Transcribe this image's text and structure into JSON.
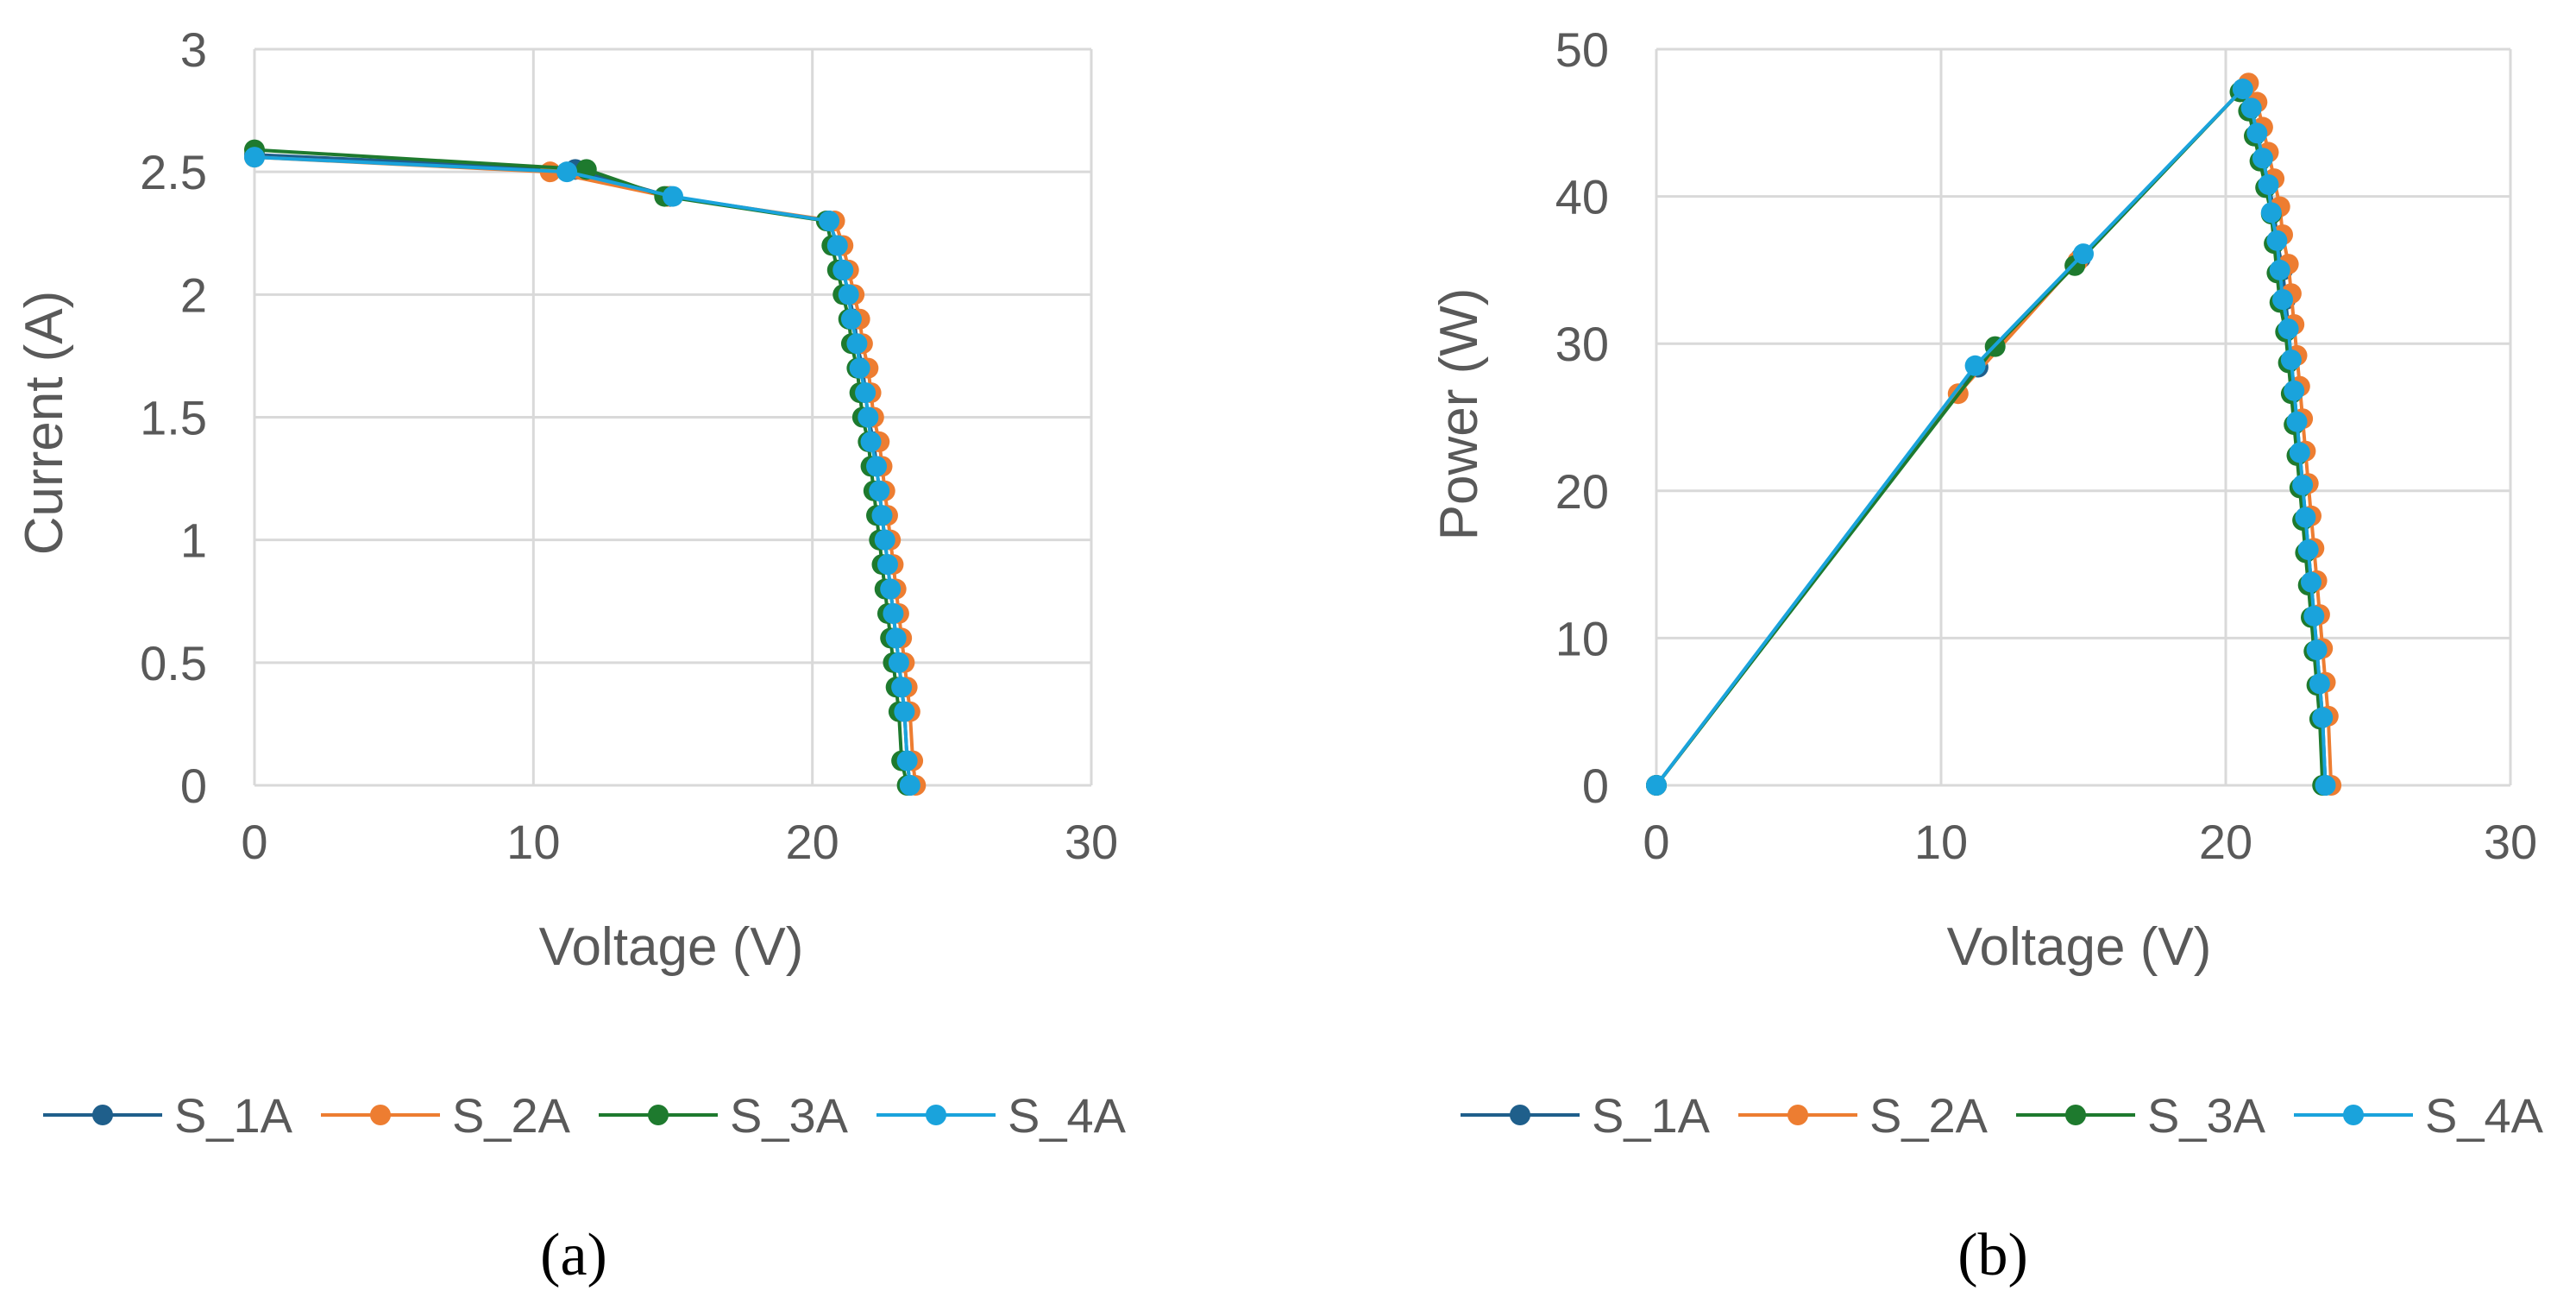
{
  "chart_data": [
    {
      "type": "line",
      "panel_label": "(a)",
      "xlabel": "Voltage (V)",
      "ylabel": "Current (A)",
      "xlim": [
        0,
        30
      ],
      "ylim": [
        0,
        3
      ],
      "xticks": [
        "0",
        "10",
        "20",
        "30"
      ],
      "yticks": [
        "0",
        "0.5",
        "1",
        "1.5",
        "2",
        "2.5",
        "3"
      ],
      "legend_position": "bottom",
      "series": [
        {
          "name": "S_1A",
          "color": "#1f5f8b",
          "x": [
            0,
            11.5,
            14.9,
            20.6,
            20.9,
            21.1,
            21.3,
            21.5,
            21.6,
            21.8,
            21.9,
            22.0,
            22.2,
            22.3,
            22.4,
            22.5,
            22.6,
            22.7,
            22.8,
            22.9,
            23.0,
            23.1,
            23.2,
            23.3,
            23.4,
            23.5
          ],
          "y": [
            2.57,
            2.51,
            2.4,
            2.3,
            2.2,
            2.1,
            2.0,
            1.9,
            1.8,
            1.7,
            1.6,
            1.5,
            1.4,
            1.3,
            1.2,
            1.1,
            1.0,
            0.9,
            0.8,
            0.7,
            0.6,
            0.5,
            0.4,
            0.3,
            0.1,
            0.0
          ]
        },
        {
          "name": "S_2A",
          "color": "#ed7d31",
          "x": [
            0,
            10.6,
            14.8,
            20.8,
            21.1,
            21.3,
            21.5,
            21.7,
            21.8,
            22.0,
            22.1,
            22.2,
            22.4,
            22.5,
            22.6,
            22.7,
            22.8,
            22.9,
            23.0,
            23.1,
            23.2,
            23.3,
            23.4,
            23.5,
            23.6,
            23.7
          ],
          "y": [
            2.56,
            2.5,
            2.4,
            2.3,
            2.2,
            2.1,
            2.0,
            1.9,
            1.8,
            1.7,
            1.6,
            1.5,
            1.4,
            1.3,
            1.2,
            1.1,
            1.0,
            0.9,
            0.8,
            0.7,
            0.6,
            0.5,
            0.4,
            0.3,
            0.1,
            0.0
          ]
        },
        {
          "name": "S_3A",
          "color": "#1e7a2e",
          "x": [
            0,
            11.9,
            14.7,
            20.5,
            20.7,
            20.9,
            21.1,
            21.3,
            21.4,
            21.6,
            21.7,
            21.8,
            22.0,
            22.1,
            22.2,
            22.3,
            22.4,
            22.5,
            22.6,
            22.7,
            22.8,
            22.9,
            23.0,
            23.1,
            23.2,
            23.4
          ],
          "y": [
            2.59,
            2.51,
            2.4,
            2.3,
            2.2,
            2.1,
            2.0,
            1.9,
            1.8,
            1.7,
            1.6,
            1.5,
            1.4,
            1.3,
            1.2,
            1.1,
            1.0,
            0.9,
            0.8,
            0.7,
            0.6,
            0.5,
            0.4,
            0.3,
            0.1,
            0.0
          ]
        },
        {
          "name": "S_4A",
          "color": "#1aa3dc",
          "x": [
            0,
            11.2,
            15.0,
            20.6,
            20.9,
            21.1,
            21.3,
            21.4,
            21.6,
            21.7,
            21.9,
            22.0,
            22.1,
            22.3,
            22.4,
            22.5,
            22.6,
            22.7,
            22.8,
            22.9,
            23.0,
            23.1,
            23.2,
            23.3,
            23.4,
            23.5
          ],
          "y": [
            2.56,
            2.5,
            2.4,
            2.3,
            2.2,
            2.1,
            2.0,
            1.9,
            1.8,
            1.7,
            1.6,
            1.5,
            1.4,
            1.3,
            1.2,
            1.1,
            1.0,
            0.9,
            0.8,
            0.7,
            0.6,
            0.5,
            0.4,
            0.3,
            0.1,
            0.0
          ]
        }
      ]
    },
    {
      "type": "line",
      "panel_label": "(b)",
      "xlabel": "Voltage (V)",
      "ylabel": "Power (W)",
      "xlim": [
        0,
        30
      ],
      "ylim": [
        0,
        50
      ],
      "xticks": [
        "0",
        "10",
        "20",
        "30"
      ],
      "yticks": [
        "0",
        "10",
        "20",
        "30",
        "40",
        "50"
      ],
      "legend_position": "bottom",
      "series": [
        {
          "name": "S_1A",
          "color": "#1f5f8b",
          "x": [
            0,
            11.3,
            14.9,
            20.6,
            20.9,
            21.1,
            21.3,
            21.5,
            21.7,
            21.8,
            22.0,
            22.1,
            22.2,
            22.3,
            22.4,
            22.5,
            22.6,
            22.7,
            22.8,
            22.9,
            23.0,
            23.1,
            23.2,
            23.3,
            23.4,
            23.5
          ],
          "y": [
            0,
            28.4,
            35.8,
            47.3,
            46.0,
            44.3,
            42.6,
            40.8,
            39.0,
            37.0,
            35.0,
            33.0,
            31.0,
            28.9,
            26.8,
            24.7,
            22.6,
            20.4,
            18.2,
            16.0,
            13.8,
            11.5,
            9.2,
            6.9,
            4.6,
            0.0
          ]
        },
        {
          "name": "S_2A",
          "color": "#ed7d31",
          "x": [
            0,
            10.6,
            14.8,
            20.8,
            21.1,
            21.3,
            21.5,
            21.7,
            21.9,
            22.0,
            22.2,
            22.3,
            22.4,
            22.5,
            22.6,
            22.7,
            22.8,
            22.9,
            23.0,
            23.1,
            23.2,
            23.3,
            23.4,
            23.5,
            23.6,
            23.7
          ],
          "y": [
            0,
            26.6,
            35.6,
            47.7,
            46.4,
            44.7,
            43.0,
            41.2,
            39.3,
            37.4,
            35.4,
            33.4,
            31.3,
            29.2,
            27.1,
            24.9,
            22.7,
            20.5,
            18.3,
            16.1,
            13.9,
            11.6,
            9.3,
            7.0,
            4.7,
            0.0
          ]
        },
        {
          "name": "S_3A",
          "color": "#1e7a2e",
          "x": [
            0,
            11.9,
            14.7,
            20.5,
            20.8,
            21.0,
            21.2,
            21.4,
            21.6,
            21.7,
            21.8,
            21.9,
            22.1,
            22.2,
            22.3,
            22.4,
            22.5,
            22.6,
            22.7,
            22.8,
            22.9,
            23.0,
            23.1,
            23.2,
            23.3,
            23.4
          ],
          "y": [
            0,
            29.8,
            35.3,
            47.1,
            45.8,
            44.1,
            42.4,
            40.6,
            38.8,
            36.8,
            34.8,
            32.8,
            30.8,
            28.7,
            26.6,
            24.5,
            22.4,
            20.2,
            18.0,
            15.8,
            13.6,
            11.4,
            9.1,
            6.8,
            4.5,
            0.0
          ]
        },
        {
          "name": "S_4A",
          "color": "#1aa3dc",
          "x": [
            0,
            11.2,
            15.0,
            20.6,
            20.9,
            21.1,
            21.3,
            21.5,
            21.6,
            21.8,
            21.9,
            22.0,
            22.2,
            22.3,
            22.4,
            22.5,
            22.6,
            22.7,
            22.8,
            22.9,
            23.0,
            23.1,
            23.2,
            23.3,
            23.4,
            23.5
          ],
          "y": [
            0,
            28.5,
            36.1,
            47.3,
            46.0,
            44.3,
            42.6,
            40.8,
            38.9,
            37.0,
            35.0,
            33.0,
            31.0,
            28.9,
            26.8,
            24.7,
            22.6,
            20.4,
            18.2,
            16.0,
            13.8,
            11.5,
            9.2,
            6.9,
            4.6,
            0.0
          ]
        }
      ]
    }
  ]
}
